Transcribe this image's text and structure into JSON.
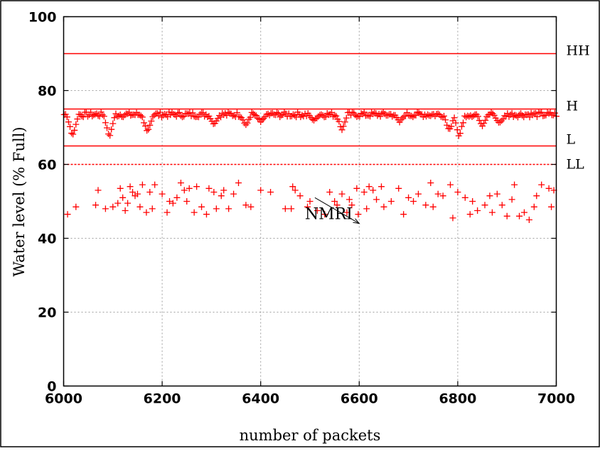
{
  "chart_data": {
    "type": "scatter",
    "title": "",
    "xlabel": "number of packets",
    "ylabel": "Water level (% Full)",
    "xlim": [
      6000,
      7000
    ],
    "ylim": [
      0,
      100
    ],
    "x_ticks": [
      6000,
      6200,
      6400,
      6600,
      6800,
      7000
    ],
    "y_ticks": [
      0,
      20,
      40,
      60,
      80,
      100
    ],
    "grid": true,
    "series_color": "#ff0000",
    "reference_lines": [
      {
        "label": "HH",
        "y": 90,
        "style": "solid"
      },
      {
        "label": "H",
        "y": 75,
        "style": "solid"
      },
      {
        "label": "L",
        "y": 65,
        "style": "solid"
      },
      {
        "label": "LL",
        "y": 60,
        "style": "dashed"
      }
    ],
    "annotation": {
      "text": "NMRI",
      "arrow_from": [
        6510,
        51
      ],
      "arrow_to": [
        6600,
        44
      ]
    },
    "series": [
      {
        "marker": "+",
        "baseline_level": 73.5,
        "dips": [
          {
            "x": 6018,
            "min_y": 67.5
          },
          {
            "x": 6093,
            "min_y": 67.5
          },
          {
            "x": 6170,
            "min_y": 68.5
          },
          {
            "x": 6305,
            "min_y": 71
          },
          {
            "x": 6370,
            "min_y": 70.5
          },
          {
            "x": 6400,
            "min_y": 71.5
          },
          {
            "x": 6508,
            "min_y": 72
          },
          {
            "x": 6565,
            "min_y": 69.5
          },
          {
            "x": 6683,
            "min_y": 71.5
          },
          {
            "x": 6783,
            "min_y": 69
          },
          {
            "x": 6803,
            "min_y": 67.5
          },
          {
            "x": 6850,
            "min_y": 70.5
          },
          {
            "x": 6885,
            "min_y": 71
          }
        ]
      },
      {
        "marker": "+",
        "points": [
          [
            6008,
            46.5
          ],
          [
            6025,
            48.5
          ],
          [
            6065,
            49
          ],
          [
            6070,
            53
          ],
          [
            6085,
            48
          ],
          [
            6100,
            48.5
          ],
          [
            6110,
            49.5
          ],
          [
            6115,
            53.5
          ],
          [
            6120,
            51
          ],
          [
            6125,
            47.5
          ],
          [
            6130,
            49.5
          ],
          [
            6135,
            54
          ],
          [
            6140,
            52.5
          ],
          [
            6145,
            51.5
          ],
          [
            6150,
            52
          ],
          [
            6155,
            48.5
          ],
          [
            6160,
            54.5
          ],
          [
            6168,
            47
          ],
          [
            6175,
            52.5
          ],
          [
            6180,
            48
          ],
          [
            6185,
            54.5
          ],
          [
            6200,
            52
          ],
          [
            6210,
            47
          ],
          [
            6215,
            50
          ],
          [
            6222,
            49.5
          ],
          [
            6230,
            51
          ],
          [
            6238,
            55
          ],
          [
            6245,
            53
          ],
          [
            6250,
            50
          ],
          [
            6255,
            53.5
          ],
          [
            6265,
            47
          ],
          [
            6270,
            54
          ],
          [
            6280,
            48.5
          ],
          [
            6290,
            46.5
          ],
          [
            6295,
            53.5
          ],
          [
            6305,
            52.5
          ],
          [
            6310,
            48
          ],
          [
            6320,
            51.5
          ],
          [
            6325,
            53
          ],
          [
            6335,
            48
          ],
          [
            6345,
            52
          ],
          [
            6355,
            55
          ],
          [
            6370,
            49
          ],
          [
            6380,
            48.5
          ],
          [
            6400,
            53
          ],
          [
            6420,
            52.5
          ],
          [
            6450,
            48
          ],
          [
            6462,
            48
          ],
          [
            6465,
            54
          ],
          [
            6470,
            53
          ],
          [
            6480,
            51.5
          ],
          [
            6495,
            48.5
          ],
          [
            6500,
            50
          ],
          [
            6515,
            47.5
          ],
          [
            6530,
            46.5
          ],
          [
            6540,
            52.5
          ],
          [
            6550,
            50
          ],
          [
            6555,
            49
          ],
          [
            6565,
            52
          ],
          [
            6575,
            47
          ],
          [
            6580,
            50.5
          ],
          [
            6585,
            49
          ],
          [
            6595,
            53.5
          ],
          [
            6598,
            46.5
          ],
          [
            6610,
            52.5
          ],
          [
            6615,
            48
          ],
          [
            6620,
            54
          ],
          [
            6628,
            53
          ],
          [
            6635,
            50.5
          ],
          [
            6645,
            54
          ],
          [
            6650,
            48.5
          ],
          [
            6665,
            50
          ],
          [
            6680,
            53.5
          ],
          [
            6690,
            46.5
          ],
          [
            6700,
            51
          ],
          [
            6710,
            50
          ],
          [
            6720,
            52
          ],
          [
            6735,
            49
          ],
          [
            6745,
            55
          ],
          [
            6750,
            48.5
          ],
          [
            6760,
            52
          ],
          [
            6770,
            51.5
          ],
          [
            6785,
            54.5
          ],
          [
            6790,
            45.5
          ],
          [
            6800,
            52.5
          ],
          [
            6815,
            51
          ],
          [
            6825,
            46.5
          ],
          [
            6830,
            50
          ],
          [
            6840,
            47.5
          ],
          [
            6855,
            49
          ],
          [
            6865,
            51.5
          ],
          [
            6870,
            47
          ],
          [
            6880,
            52
          ],
          [
            6890,
            49
          ],
          [
            6900,
            46
          ],
          [
            6910,
            50.5
          ],
          [
            6915,
            54.5
          ],
          [
            6925,
            46
          ],
          [
            6935,
            47
          ],
          [
            6945,
            45
          ],
          [
            6955,
            48.5
          ],
          [
            6960,
            51.5
          ],
          [
            6970,
            54.5
          ],
          [
            6985,
            53.5
          ],
          [
            6990,
            48.5
          ],
          [
            6995,
            53
          ]
        ]
      }
    ]
  }
}
